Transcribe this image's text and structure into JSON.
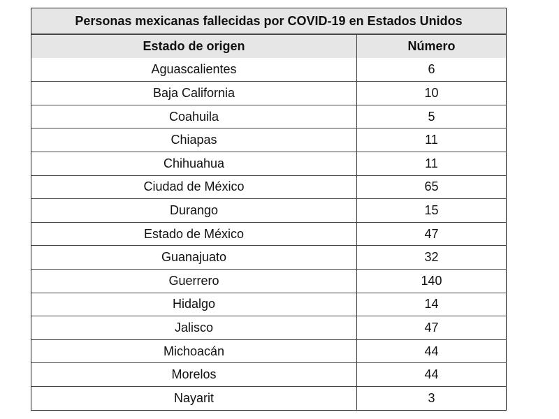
{
  "table": {
    "title": "Personas mexicanas fallecidas por COVID-19 en Estados Unidos",
    "headers": {
      "state": "Estado de origen",
      "number": "Número"
    },
    "rows": [
      {
        "state": "Aguascalientes",
        "number": "6"
      },
      {
        "state": "Baja California",
        "number": "10"
      },
      {
        "state": "Coahuila",
        "number": "5"
      },
      {
        "state": "Chiapas",
        "number": "11"
      },
      {
        "state": "Chihuahua",
        "number": "11"
      },
      {
        "state": "Ciudad de México",
        "number": "65"
      },
      {
        "state": "Durango",
        "number": "15"
      },
      {
        "state": "Estado de México",
        "number": "47"
      },
      {
        "state": "Guanajuato",
        "number": "32"
      },
      {
        "state": "Guerrero",
        "number": "140"
      },
      {
        "state": "Hidalgo",
        "number": "14"
      },
      {
        "state": "Jalisco",
        "number": "47"
      },
      {
        "state": "Michoacán",
        "number": "44"
      },
      {
        "state": "Morelos",
        "number": "44"
      },
      {
        "state": "Nayarit",
        "number": "3"
      }
    ]
  }
}
